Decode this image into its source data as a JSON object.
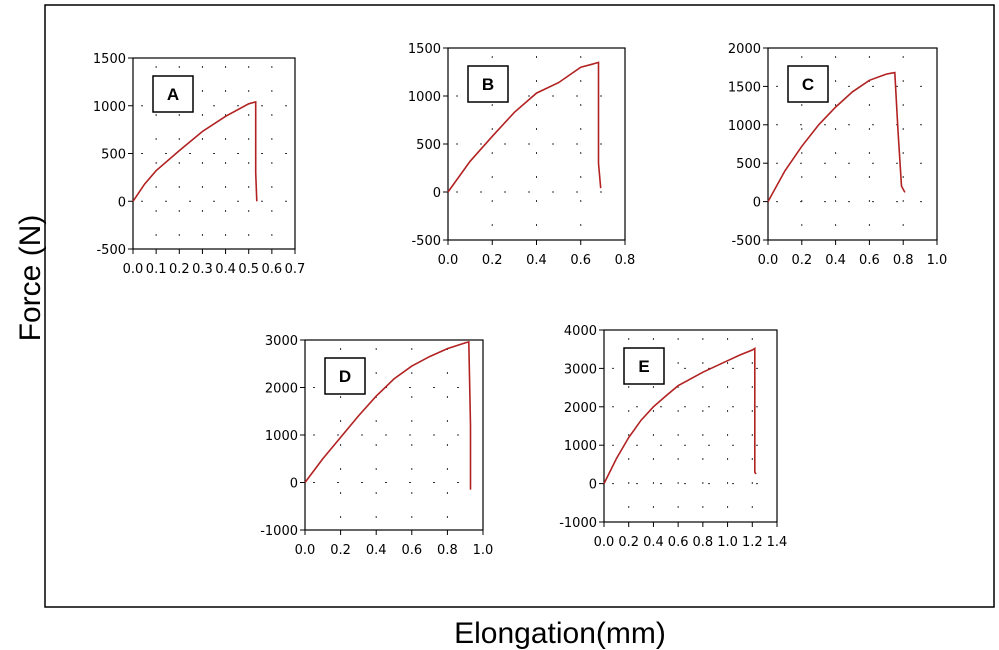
{
  "figure": {
    "ylabel": "Force (N)",
    "xlabel": "Elongation(mm)",
    "curve_color": "#b22222"
  },
  "chart_data": [
    {
      "type": "line",
      "panel": "A",
      "xlim": [
        0,
        0.7
      ],
      "ylim": [
        -500,
        1500
      ],
      "xticks": [
        "0.0",
        "0.1",
        "0.2",
        "0.3",
        "0.4",
        "0.5",
        "0.6",
        "0.7"
      ],
      "yticks": [
        "-500",
        "0",
        "500",
        "1000",
        "1500"
      ],
      "xtick_values": [
        0,
        0.1,
        0.2,
        0.3,
        0.4,
        0.5,
        0.6,
        0.7
      ],
      "ytick_values": [
        -500,
        0,
        500,
        1000,
        1500
      ],
      "grid": true,
      "series": [
        {
          "x": [
            0,
            0.05,
            0.1,
            0.2,
            0.3,
            0.4,
            0.5,
            0.53,
            0.53,
            0.535
          ],
          "y": [
            0,
            180,
            320,
            530,
            730,
            890,
            1020,
            1040,
            300,
            0
          ]
        }
      ]
    },
    {
      "type": "line",
      "panel": "B",
      "xlim": [
        0,
        0.8
      ],
      "ylim": [
        -500,
        1500
      ],
      "xticks": [
        "0.0",
        "0.2",
        "0.4",
        "0.6",
        "0.8"
      ],
      "yticks": [
        "-500",
        "0",
        "500",
        "1000",
        "1500"
      ],
      "xtick_values": [
        0,
        0.2,
        0.4,
        0.6,
        0.8
      ],
      "ytick_values": [
        -500,
        0,
        500,
        1000,
        1500
      ],
      "grid": true,
      "series": [
        {
          "x": [
            0,
            0.1,
            0.2,
            0.3,
            0.4,
            0.5,
            0.6,
            0.65,
            0.68,
            0.68,
            0.69
          ],
          "y": [
            0,
            320,
            580,
            830,
            1030,
            1140,
            1300,
            1330,
            1350,
            300,
            40
          ]
        }
      ]
    },
    {
      "type": "line",
      "panel": "C",
      "xlim": [
        0,
        1.0
      ],
      "ylim": [
        -500,
        2000
      ],
      "xticks": [
        "0.0",
        "0.2",
        "0.4",
        "0.6",
        "0.8",
        "1.0"
      ],
      "yticks": [
        "-500",
        "0",
        "500",
        "1000",
        "1500",
        "2000"
      ],
      "xtick_values": [
        0,
        0.2,
        0.4,
        0.6,
        0.8,
        1.0
      ],
      "ytick_values": [
        -500,
        0,
        500,
        1000,
        1500,
        2000
      ],
      "grid": true,
      "series": [
        {
          "x": [
            0,
            0.1,
            0.2,
            0.3,
            0.4,
            0.5,
            0.6,
            0.7,
            0.75,
            0.77,
            0.79,
            0.81
          ],
          "y": [
            0,
            400,
            720,
            1000,
            1230,
            1430,
            1580,
            1660,
            1680,
            900,
            200,
            120
          ]
        }
      ]
    },
    {
      "type": "line",
      "panel": "D",
      "xlim": [
        0,
        1.0
      ],
      "ylim": [
        -1000,
        3000
      ],
      "xticks": [
        "0.0",
        "0.2",
        "0.4",
        "0.6",
        "0.8",
        "1.0"
      ],
      "yticks": [
        "-1000",
        "0",
        "1000",
        "2000",
        "3000"
      ],
      "xtick_values": [
        0,
        0.2,
        0.4,
        0.6,
        0.8,
        1.0
      ],
      "ytick_values": [
        -1000,
        0,
        1000,
        2000,
        3000
      ],
      "grid": true,
      "series": [
        {
          "x": [
            0,
            0.1,
            0.2,
            0.3,
            0.4,
            0.5,
            0.6,
            0.7,
            0.8,
            0.9,
            0.92,
            0.93,
            0.93
          ],
          "y": [
            0,
            500,
            950,
            1400,
            1820,
            2180,
            2450,
            2650,
            2820,
            2940,
            2960,
            1200,
            -150
          ]
        }
      ]
    },
    {
      "type": "line",
      "panel": "E",
      "xlim": [
        0,
        1.4
      ],
      "ylim": [
        -1000,
        4000
      ],
      "xticks": [
        "0.0",
        "0.2",
        "0.4",
        "0.6",
        "0.8",
        "1.0",
        "1.2",
        "1.4"
      ],
      "yticks": [
        "-1000",
        "0",
        "1000",
        "2000",
        "3000",
        "4000"
      ],
      "xtick_values": [
        0,
        0.2,
        0.4,
        0.6,
        0.8,
        1.0,
        1.2,
        1.4
      ],
      "ytick_values": [
        -1000,
        0,
        1000,
        2000,
        3000,
        4000
      ],
      "grid": true,
      "series": [
        {
          "x": [
            0,
            0.1,
            0.2,
            0.3,
            0.4,
            0.5,
            0.6,
            0.8,
            1.0,
            1.1,
            1.2,
            1.22,
            1.22,
            1.23
          ],
          "y": [
            0,
            650,
            1200,
            1650,
            2000,
            2280,
            2550,
            2900,
            3200,
            3350,
            3480,
            3520,
            300,
            250
          ]
        }
      ]
    }
  ]
}
